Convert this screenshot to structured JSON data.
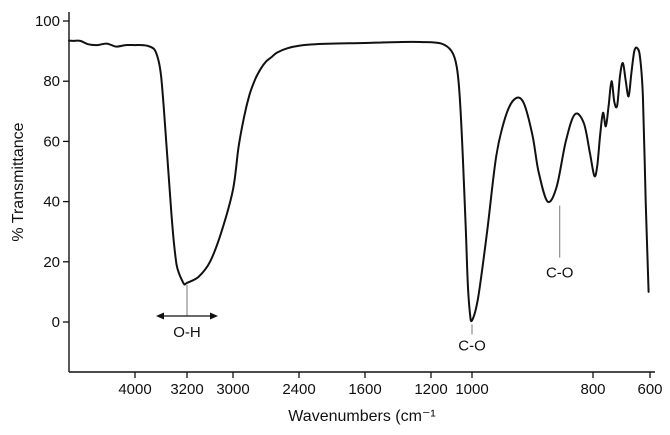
{
  "chart_data": {
    "type": "line",
    "title": "",
    "xlabel": "Wavenumbers (cm⁻¹",
    "ylabel": "% Transmittance",
    "xlim": [
      4700,
      600
    ],
    "ylim": [
      -12,
      103
    ],
    "x_reversed": true,
    "x_tick_values": [
      4000,
      3200,
      3000,
      2400,
      1600,
      1200,
      1000,
      800,
      600
    ],
    "x_tick_labels": [
      "4000",
      "3200",
      "3000",
      "2400",
      "1600",
      "1200",
      "1000",
      "800",
      "600"
    ],
    "y_ticks": [
      0,
      20,
      40,
      60,
      80,
      100
    ],
    "y_tick_labels": [
      "0",
      "20",
      "40",
      "60",
      "80",
      "100"
    ],
    "grid": false,
    "legend": "none",
    "line_color": "#111111",
    "series": [
      {
        "x": [
          4700,
          4650,
          4580,
          4500,
          4400,
          4300,
          4200,
          4100,
          4000,
          3900,
          3800,
          3700,
          3640,
          3600,
          3560,
          3520,
          3480,
          3440,
          3400,
          3360,
          3320,
          3280,
          3240,
          3200,
          3150,
          3100,
          3050,
          3000,
          2950,
          2900,
          2850,
          2800,
          2750,
          2700,
          2650,
          2600,
          2500,
          2400,
          2200,
          2000,
          1800,
          1600,
          1400,
          1250,
          1150,
          1100,
          1075,
          1060,
          1045,
          1030,
          1020,
          1010,
          1000,
          990,
          975,
          960,
          945,
          930,
          915,
          900,
          890,
          875,
          860,
          845,
          830,
          815,
          805,
          795,
          785,
          775,
          765,
          755,
          745,
          735,
          725,
          715,
          705,
          695,
          685,
          675,
          665,
          655,
          645,
          635,
          625,
          615,
          605
        ],
        "y": [
          93.5,
          93.4,
          93.4,
          92.3,
          92.0,
          92.5,
          91.5,
          92.0,
          92.0,
          92.0,
          91.7,
          90.5,
          87.0,
          82.0,
          72.0,
          60.0,
          48.0,
          36.0,
          26.0,
          19.0,
          16.0,
          14.0,
          12.5,
          13.0,
          15.0,
          20.0,
          30.0,
          44.0,
          58.0,
          68.0,
          75.5,
          80.5,
          84.0,
          86.5,
          88.0,
          89.5,
          91.0,
          91.8,
          92.3,
          92.5,
          92.6,
          92.7,
          93.0,
          93.0,
          92.5,
          90.0,
          85.0,
          75.0,
          55.0,
          30.0,
          12.0,
          3.0,
          0.5,
          8.0,
          30.0,
          55.0,
          68.0,
          74.0,
          73.0,
          62.0,
          50.0,
          40.0,
          45.0,
          60.0,
          69.0,
          66.0,
          56.0,
          48.5,
          52.0,
          62.0,
          69.5,
          65.0,
          72.0,
          80.0,
          73.0,
          72.0,
          82.0,
          86.0,
          80.0,
          75.0,
          83.0,
          90.0,
          91.0,
          88.0,
          75.0,
          40.0,
          10.0
        ]
      }
    ],
    "annotations": [
      {
        "text": "O-H",
        "x": 3200,
        "y": 13,
        "marker": "double-arrow"
      },
      {
        "text": "C-O",
        "x": 1000,
        "y": 0.5,
        "marker": "leader"
      },
      {
        "text": "C-O",
        "x": 855,
        "y": 40,
        "marker": "leader"
      }
    ]
  }
}
